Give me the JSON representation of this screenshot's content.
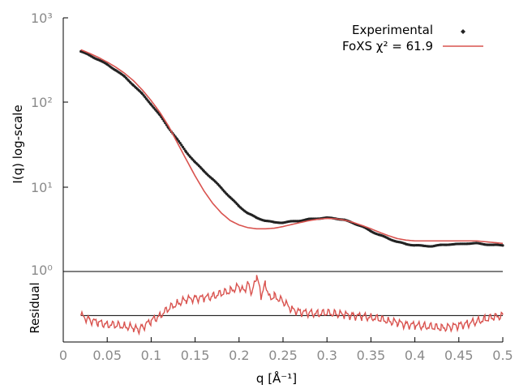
{
  "colors": {
    "experimental": "#222222",
    "fit": "#d9534f",
    "axis": "#000000",
    "tick_text": "#8a8a8a",
    "zero_line": "#000000"
  },
  "labels": {
    "ylabel_top": "I(q) log-scale",
    "ylabel_bottom": "Residual",
    "legend_experimental": "Experimental",
    "legend_fit": "FoXS χ² = 61.9"
  },
  "chart_data": [
    {
      "type": "line",
      "panel": "main",
      "yscale": "log",
      "ylim": [
        1,
        1000
      ],
      "xlim": [
        0,
        0.5
      ],
      "ylabel": "I(q) log-scale",
      "ytick_labels": [
        "10⁰",
        "10¹",
        "10²",
        "10³"
      ],
      "legend_position": "top-right",
      "series": [
        {
          "name": "Experimental",
          "style": "points",
          "x": [
            0.02,
            0.03,
            0.04,
            0.05,
            0.06,
            0.07,
            0.08,
            0.09,
            0.1,
            0.11,
            0.12,
            0.13,
            0.14,
            0.15,
            0.16,
            0.17,
            0.18,
            0.19,
            0.2,
            0.21,
            0.22,
            0.23,
            0.24,
            0.25,
            0.26,
            0.27,
            0.28,
            0.29,
            0.3,
            0.31,
            0.32,
            0.33,
            0.34,
            0.35,
            0.36,
            0.37,
            0.38,
            0.39,
            0.4,
            0.41,
            0.42,
            0.43,
            0.44,
            0.45,
            0.46,
            0.47,
            0.48,
            0.49,
            0.5
          ],
          "y": [
            400,
            360,
            320,
            280,
            240,
            200,
            160,
            125,
            95,
            70,
            50,
            36,
            26,
            19.5,
            15.5,
            12.3,
            9.7,
            7.5,
            5.9,
            4.9,
            4.3,
            4.0,
            3.8,
            3.8,
            3.9,
            4.0,
            4.15,
            4.25,
            4.3,
            4.25,
            4.05,
            3.75,
            3.4,
            3.0,
            2.7,
            2.45,
            2.25,
            2.1,
            2.05,
            2.0,
            2.0,
            2.05,
            2.1,
            2.1,
            2.15,
            2.15,
            2.1,
            2.05,
            2.05
          ]
        },
        {
          "name": "FoXS χ² = 61.9",
          "style": "line",
          "x": [
            0.02,
            0.03,
            0.04,
            0.05,
            0.06,
            0.07,
            0.08,
            0.09,
            0.1,
            0.11,
            0.12,
            0.13,
            0.14,
            0.15,
            0.16,
            0.17,
            0.18,
            0.19,
            0.2,
            0.21,
            0.22,
            0.23,
            0.24,
            0.25,
            0.26,
            0.27,
            0.28,
            0.29,
            0.3,
            0.31,
            0.32,
            0.33,
            0.34,
            0.35,
            0.36,
            0.37,
            0.38,
            0.39,
            0.4,
            0.41,
            0.42,
            0.43,
            0.44,
            0.45,
            0.46,
            0.47,
            0.48,
            0.49,
            0.5
          ],
          "y": [
            420,
            380,
            340,
            300,
            260,
            220,
            180,
            140,
            105,
            76,
            52,
            33,
            21,
            13.5,
            9.0,
            6.4,
            4.9,
            4.0,
            3.55,
            3.3,
            3.2,
            3.2,
            3.25,
            3.4,
            3.6,
            3.8,
            4.0,
            4.15,
            4.25,
            4.2,
            4.05,
            3.8,
            3.5,
            3.2,
            2.9,
            2.65,
            2.45,
            2.35,
            2.3,
            2.3,
            2.3,
            2.3,
            2.3,
            2.3,
            2.3,
            2.3,
            2.25,
            2.2,
            2.15
          ]
        }
      ]
    },
    {
      "type": "line",
      "panel": "residual",
      "xlim": [
        0,
        0.5
      ],
      "ylim": [
        -3,
        5
      ],
      "xlabel": "q [Å⁻¹]",
      "ylabel": "Residual",
      "xtick_labels": [
        "0",
        "0.05",
        "0.1",
        "0.15",
        "0.2",
        "0.25",
        "0.3",
        "0.35",
        "0.4",
        "0.45",
        "0.5"
      ],
      "series": [
        {
          "name": "",
          "style": "line",
          "x": [
            0.02,
            0.03,
            0.04,
            0.05,
            0.06,
            0.07,
            0.08,
            0.085,
            0.09,
            0.1,
            0.11,
            0.12,
            0.13,
            0.14,
            0.15,
            0.16,
            0.17,
            0.18,
            0.19,
            0.2,
            0.205,
            0.21,
            0.215,
            0.22,
            0.225,
            0.23,
            0.235,
            0.24,
            0.25,
            0.26,
            0.27,
            0.28,
            0.29,
            0.3,
            0.31,
            0.32,
            0.33,
            0.34,
            0.35,
            0.36,
            0.37,
            0.38,
            0.39,
            0.4,
            0.41,
            0.42,
            0.43,
            0.44,
            0.45,
            0.46,
            0.47,
            0.48,
            0.49,
            0.5
          ],
          "y": [
            0.0,
            -0.5,
            -0.8,
            -1.0,
            -1.1,
            -1.2,
            -1.4,
            -1.6,
            -1.3,
            -0.6,
            0.0,
            0.8,
            1.4,
            1.8,
            2.0,
            2.0,
            2.2,
            2.5,
            2.8,
            3.3,
            2.8,
            3.6,
            2.6,
            4.6,
            2.2,
            3.6,
            2.0,
            2.2,
            1.6,
            0.7,
            0.4,
            0.3,
            0.2,
            0.3,
            0.2,
            0.1,
            0.0,
            -0.1,
            -0.2,
            -0.4,
            -0.6,
            -0.8,
            -1.0,
            -1.1,
            -1.2,
            -1.3,
            -1.4,
            -1.3,
            -1.1,
            -0.9,
            -0.7,
            -0.4,
            -0.2,
            0.0
          ]
        },
        {
          "name": "",
          "style": "zero-line",
          "x": [
            0.02,
            0.5
          ],
          "y": [
            0,
            0
          ]
        }
      ]
    }
  ]
}
